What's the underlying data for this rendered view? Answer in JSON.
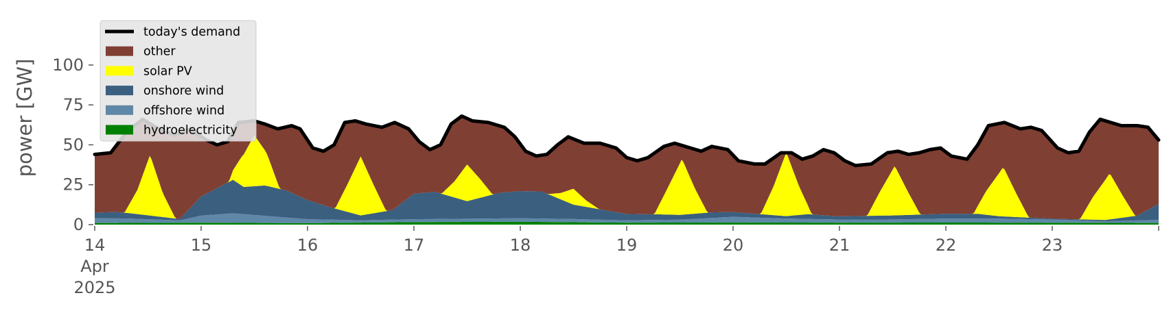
{
  "chart_data": {
    "type": "area",
    "title": "",
    "xlabel": "",
    "ylabel": "power [GW]",
    "x_unit": "days",
    "xlim": [
      14,
      24
    ],
    "ylim": [
      0,
      115
    ],
    "yticks": [
      0,
      25,
      50,
      75,
      100
    ],
    "xticks": [
      {
        "value": 14,
        "lines": [
          "14",
          "Apr",
          "2025"
        ]
      },
      {
        "value": 15,
        "lines": [
          "15"
        ]
      },
      {
        "value": 16,
        "lines": [
          "16"
        ]
      },
      {
        "value": 17,
        "lines": [
          "17"
        ]
      },
      {
        "value": 18,
        "lines": [
          "18"
        ]
      },
      {
        "value": 19,
        "lines": [
          "19"
        ]
      },
      {
        "value": 20,
        "lines": [
          "20"
        ]
      },
      {
        "value": 21,
        "lines": [
          "21"
        ]
      },
      {
        "value": 22,
        "lines": [
          "22"
        ]
      },
      {
        "value": 23,
        "lines": [
          "23"
        ]
      }
    ],
    "grid": false,
    "legend_position": "upper-left",
    "background": "#ffffff",
    "stack_order": [
      "hydroelectricity",
      "offshore wind",
      "onshore wind",
      "solar PV",
      "other"
    ],
    "series": [
      {
        "name": "hydroelectricity",
        "color": "#008000",
        "points": [
          [
            14,
            1.0
          ],
          [
            15,
            1.2
          ],
          [
            16,
            0.9
          ],
          [
            17,
            1.6
          ],
          [
            18,
            1.8
          ],
          [
            19,
            1.2
          ],
          [
            20,
            1.4
          ],
          [
            21,
            1.2
          ],
          [
            22,
            1.3
          ],
          [
            23,
            1.2
          ],
          [
            24,
            1.0
          ]
        ]
      },
      {
        "name": "offshore wind",
        "color": "#5f87a8",
        "points": [
          [
            14,
            3.0
          ],
          [
            14.3,
            2.8
          ],
          [
            14.8,
            1.5
          ],
          [
            15,
            4.5
          ],
          [
            15.3,
            6.0
          ],
          [
            15.6,
            4.5
          ],
          [
            16,
            2.5
          ],
          [
            16.5,
            1.5
          ],
          [
            17,
            1.8
          ],
          [
            17.5,
            2.0
          ],
          [
            18,
            2.2
          ],
          [
            18.5,
            2.0
          ],
          [
            19,
            1.5
          ],
          [
            19.5,
            1.8
          ],
          [
            20,
            3.5
          ],
          [
            20.5,
            2.5
          ],
          [
            21,
            2.0
          ],
          [
            21.5,
            2.0
          ],
          [
            22,
            2.5
          ],
          [
            22.5,
            2.5
          ],
          [
            23,
            2.0
          ],
          [
            23.5,
            1.0
          ],
          [
            24,
            2.0
          ]
        ]
      },
      {
        "name": "onshore wind",
        "color": "#3b5f7f",
        "points": [
          [
            14,
            3.5
          ],
          [
            14.2,
            4.0
          ],
          [
            14.4,
            3.0
          ],
          [
            14.8,
            0.8
          ],
          [
            15.0,
            12.0
          ],
          [
            15.2,
            18.0
          ],
          [
            15.3,
            21.0
          ],
          [
            15.4,
            17.0
          ],
          [
            15.6,
            19.0
          ],
          [
            15.8,
            17.0
          ],
          [
            16,
            12.0
          ],
          [
            16.2,
            8.0
          ],
          [
            16.5,
            3.0
          ],
          [
            16.8,
            6.0
          ],
          [
            17,
            16.0
          ],
          [
            17.2,
            17.0
          ],
          [
            17.5,
            11.0
          ],
          [
            17.8,
            16.0
          ],
          [
            18.0,
            17.0
          ],
          [
            18.2,
            17.0
          ],
          [
            18.5,
            9.0
          ],
          [
            18.8,
            6.0
          ],
          [
            19,
            4.0
          ],
          [
            19.3,
            3.5
          ],
          [
            19.5,
            3.0
          ],
          [
            19.8,
            3.5
          ],
          [
            20,
            3.0
          ],
          [
            20.5,
            1.5
          ],
          [
            20.7,
            3.0
          ],
          [
            21,
            2.0
          ],
          [
            21.5,
            2.5
          ],
          [
            22,
            3.0
          ],
          [
            22.3,
            3.0
          ],
          [
            22.5,
            1.5
          ],
          [
            23,
            0.5
          ],
          [
            23.5,
            0.8
          ],
          [
            23.8,
            3.0
          ],
          [
            24,
            10.0
          ]
        ]
      },
      {
        "name": "solar PV",
        "color": "#ffff00",
        "points": [
          [
            14,
            0
          ],
          [
            14.28,
            0
          ],
          [
            14.4,
            15
          ],
          [
            14.52,
            38
          ],
          [
            14.64,
            15
          ],
          [
            14.76,
            0
          ],
          [
            15.26,
            0
          ],
          [
            15.38,
            18
          ],
          [
            15.5,
            32
          ],
          [
            15.62,
            20
          ],
          [
            15.74,
            0
          ],
          [
            16.26,
            0
          ],
          [
            16.38,
            18
          ],
          [
            16.5,
            37
          ],
          [
            16.62,
            18
          ],
          [
            16.74,
            0
          ],
          [
            17.26,
            0
          ],
          [
            17.38,
            10
          ],
          [
            17.5,
            23
          ],
          [
            17.62,
            12
          ],
          [
            17.74,
            0
          ],
          [
            18.26,
            0
          ],
          [
            18.38,
            4
          ],
          [
            18.5,
            10
          ],
          [
            18.62,
            4
          ],
          [
            18.74,
            0
          ],
          [
            19.26,
            0
          ],
          [
            19.38,
            16
          ],
          [
            19.52,
            35
          ],
          [
            19.64,
            16
          ],
          [
            19.76,
            0
          ],
          [
            20.26,
            0
          ],
          [
            20.38,
            18
          ],
          [
            20.5,
            40
          ],
          [
            20.62,
            18
          ],
          [
            20.74,
            0
          ],
          [
            21.26,
            0
          ],
          [
            21.38,
            15
          ],
          [
            21.52,
            31
          ],
          [
            21.64,
            15
          ],
          [
            21.76,
            0
          ],
          [
            22.26,
            0
          ],
          [
            22.38,
            15
          ],
          [
            22.54,
            31
          ],
          [
            22.66,
            15
          ],
          [
            22.78,
            0
          ],
          [
            23.26,
            0
          ],
          [
            23.38,
            14
          ],
          [
            23.54,
            29
          ],
          [
            23.66,
            14
          ],
          [
            23.78,
            0
          ],
          [
            24,
            0
          ]
        ]
      },
      {
        "name": "other",
        "color": "#803f33",
        "points": []
      }
    ],
    "demand": {
      "name": "today's demand",
      "color": "#000000",
      "points": [
        [
          14.0,
          44
        ],
        [
          14.15,
          45
        ],
        [
          14.3,
          58
        ],
        [
          14.45,
          66
        ],
        [
          14.6,
          60
        ],
        [
          14.75,
          56
        ],
        [
          14.9,
          60
        ],
        [
          15.05,
          53
        ],
        [
          15.15,
          50
        ],
        [
          15.25,
          52
        ],
        [
          15.35,
          64
        ],
        [
          15.5,
          65
        ],
        [
          15.6,
          63
        ],
        [
          15.72,
          60
        ],
        [
          15.85,
          62
        ],
        [
          15.93,
          60
        ],
        [
          16.05,
          48
        ],
        [
          16.15,
          46
        ],
        [
          16.25,
          50
        ],
        [
          16.35,
          64
        ],
        [
          16.45,
          65
        ],
        [
          16.55,
          63
        ],
        [
          16.7,
          61
        ],
        [
          16.82,
          64
        ],
        [
          16.95,
          60
        ],
        [
          17.05,
          52
        ],
        [
          17.15,
          47
        ],
        [
          17.25,
          50
        ],
        [
          17.35,
          63
        ],
        [
          17.45,
          68
        ],
        [
          17.55,
          65
        ],
        [
          17.7,
          64
        ],
        [
          17.85,
          61
        ],
        [
          17.95,
          55
        ],
        [
          18.05,
          46
        ],
        [
          18.15,
          43
        ],
        [
          18.25,
          44
        ],
        [
          18.35,
          50
        ],
        [
          18.45,
          55
        ],
        [
          18.6,
          51
        ],
        [
          18.75,
          51
        ],
        [
          18.9,
          48
        ],
        [
          19.0,
          42
        ],
        [
          19.1,
          40
        ],
        [
          19.2,
          42
        ],
        [
          19.35,
          49
        ],
        [
          19.45,
          51
        ],
        [
          19.55,
          49
        ],
        [
          19.7,
          46
        ],
        [
          19.8,
          49
        ],
        [
          19.95,
          47
        ],
        [
          20.05,
          40
        ],
        [
          20.2,
          38
        ],
        [
          20.3,
          38
        ],
        [
          20.45,
          45
        ],
        [
          20.55,
          45
        ],
        [
          20.65,
          41
        ],
        [
          20.75,
          43
        ],
        [
          20.85,
          47
        ],
        [
          20.95,
          45
        ],
        [
          21.05,
          40
        ],
        [
          21.15,
          37
        ],
        [
          21.3,
          38
        ],
        [
          21.45,
          45
        ],
        [
          21.55,
          46
        ],
        [
          21.65,
          44
        ],
        [
          21.75,
          45
        ],
        [
          21.85,
          47
        ],
        [
          21.95,
          48
        ],
        [
          22.05,
          43
        ],
        [
          22.2,
          41
        ],
        [
          22.3,
          50
        ],
        [
          22.4,
          62
        ],
        [
          22.55,
          64
        ],
        [
          22.7,
          60
        ],
        [
          22.8,
          61
        ],
        [
          22.9,
          59
        ],
        [
          23.05,
          48
        ],
        [
          23.15,
          45
        ],
        [
          23.25,
          46
        ],
        [
          23.35,
          58
        ],
        [
          23.45,
          66
        ],
        [
          23.55,
          64
        ],
        [
          23.65,
          62
        ],
        [
          23.8,
          62
        ],
        [
          23.9,
          61
        ],
        [
          24.0,
          53
        ]
      ]
    }
  }
}
